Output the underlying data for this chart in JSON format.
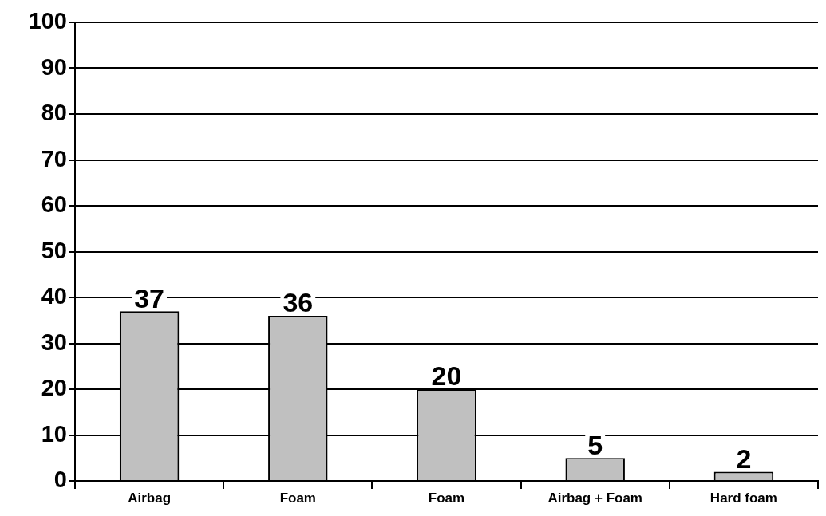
{
  "chart_data": {
    "type": "bar",
    "categories": [
      "Airbag",
      "Foam",
      "Foam",
      "Airbag + Foam",
      "Hard foam"
    ],
    "values": [
      37,
      36,
      20,
      5,
      2
    ],
    "color": "#c0c0c0",
    "ylim": [
      0,
      100
    ],
    "yticks": [
      0,
      10,
      20,
      30,
      40,
      50,
      60,
      70,
      80,
      90,
      100
    ],
    "grid": "y",
    "data_labels": true
  }
}
